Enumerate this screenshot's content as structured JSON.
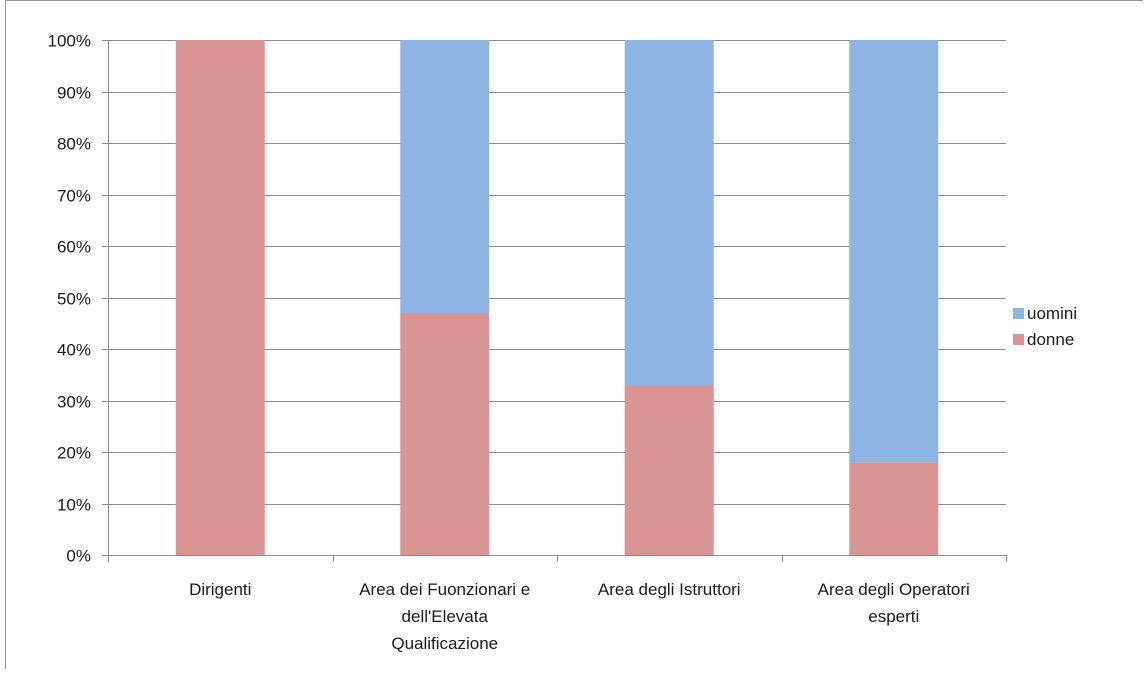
{
  "chart_data": {
    "type": "bar",
    "stacked": true,
    "percent_stacked": true,
    "title": "",
    "xlabel": "",
    "ylabel": "",
    "ylim": [
      0,
      100
    ],
    "y_ticks": [
      "0%",
      "10%",
      "20%",
      "30%",
      "40%",
      "50%",
      "60%",
      "70%",
      "80%",
      "90%",
      "100%"
    ],
    "grid": true,
    "legend_position": "right",
    "categories": [
      [
        "Dirigenti"
      ],
      [
        "Area dei Fuonzionari e",
        "dell'Elevata",
        "Qualificazione"
      ],
      [
        "Area degli Istruttori"
      ],
      [
        "Area degli Operatori",
        "esperti"
      ]
    ],
    "series": [
      {
        "name": "donne",
        "color": "#d99594",
        "values": [
          100,
          47,
          33,
          18
        ]
      },
      {
        "name": "uomini",
        "color": "#8eb4e3",
        "values": [
          0,
          53,
          67,
          82
        ]
      }
    ],
    "legend_order": [
      "uomini",
      "donne"
    ]
  }
}
